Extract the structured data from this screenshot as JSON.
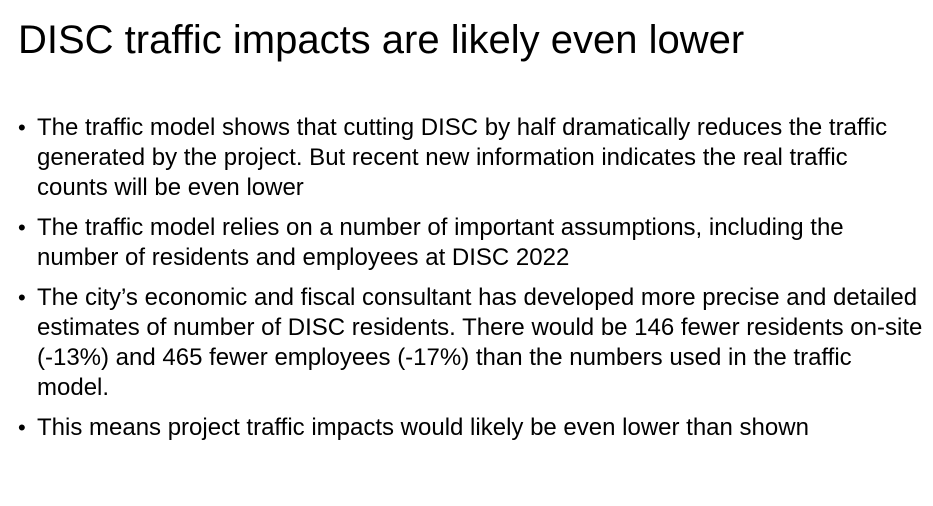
{
  "slide": {
    "title": "DISC traffic impacts are likely even lower",
    "bullet_glyph": "•",
    "bullets": [
      {
        "text": "The traffic model shows that cutting DISC by half dramatically reduces the traffic generated by the project. But recent new information indicates the real traffic counts will be even lower"
      },
      {
        "text": "The traffic model relies on a number of important assumptions, including the number of residents and employees at DISC 2022"
      },
      {
        "text": "The city’s economic and fiscal consultant has developed more precise and detailed estimates of number of DISC residents. There would be 146 fewer residents on-site (-13%) and 465 fewer employees (-17%) than the numbers used in the traffic model."
      },
      {
        "text": "This means project traffic impacts would likely be even lower than shown"
      }
    ]
  }
}
